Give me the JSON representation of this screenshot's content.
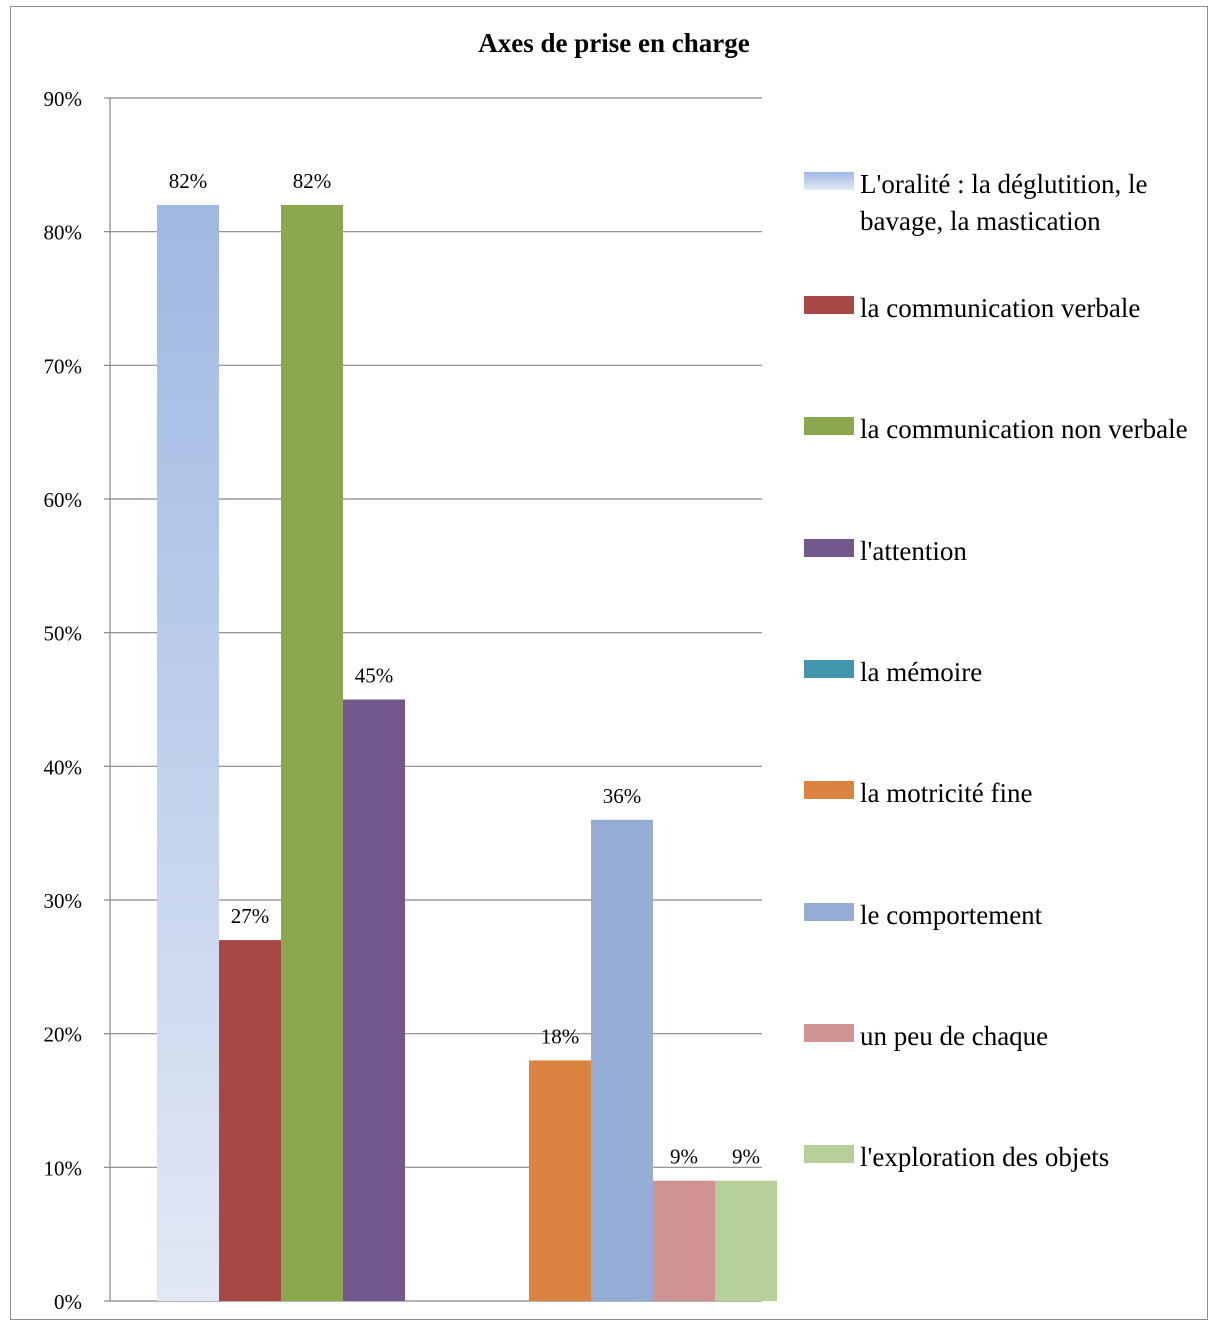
{
  "chart_data": {
    "type": "bar",
    "title": "Axes de prise en charge",
    "xlabel": "",
    "ylabel": "",
    "ylim": [
      0,
      90
    ],
    "y_ticks": [
      "0%",
      "10%",
      "20%",
      "30%",
      "40%",
      "50%",
      "60%",
      "70%",
      "80%",
      "90%"
    ],
    "grid": true,
    "legend_position": "right",
    "groups": [
      {
        "series_indices": [
          0,
          1,
          2,
          3
        ]
      },
      {
        "series_indices": [
          4,
          5,
          6,
          7,
          8
        ]
      }
    ],
    "series": [
      {
        "name": "L'oralité : la déglutition, le bavage, la mastication",
        "value": 82,
        "label": "82%",
        "color": "#9fb8e3",
        "color_end": "#e2e9f5"
      },
      {
        "name": "la communication verbale",
        "value": 27,
        "label": "27%",
        "color": "#a84846"
      },
      {
        "name": "la communication non verbale",
        "value": 82,
        "label": "82%",
        "color": "#8ba84e"
      },
      {
        "name": "l'attention",
        "value": 45,
        "label": "45%",
        "color": "#71598e"
      },
      {
        "name": "la mémoire",
        "value": 0,
        "label": "",
        "color": "#4296ab"
      },
      {
        "name": "la motricité fine",
        "value": 18,
        "label": "18%",
        "color": "#db8340"
      },
      {
        "name": "le comportement",
        "value": 36,
        "label": "36%",
        "color": "#95acd4"
      },
      {
        "name": "un peu de chaque",
        "value": 9,
        "label": "9%",
        "color": "#d19392"
      },
      {
        "name": "l'exploration des objets",
        "value": 9,
        "label": "9%",
        "color": "#b7d09a"
      }
    ]
  }
}
